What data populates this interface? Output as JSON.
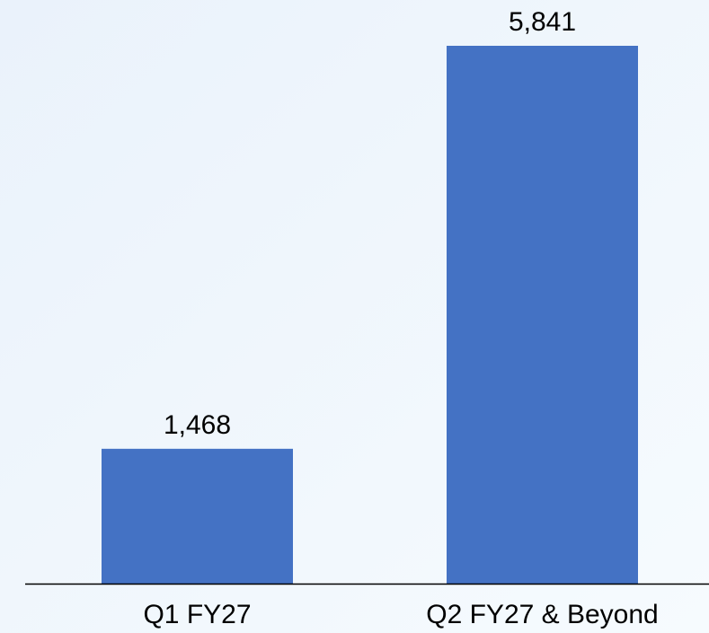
{
  "chart_data": {
    "type": "bar",
    "categories": [
      "Q1 FY27",
      "Q2 FY27 & Beyond"
    ],
    "values": [
      1468,
      5841
    ],
    "value_labels": [
      "1,468",
      "5,841"
    ],
    "color": "#4472c4"
  }
}
